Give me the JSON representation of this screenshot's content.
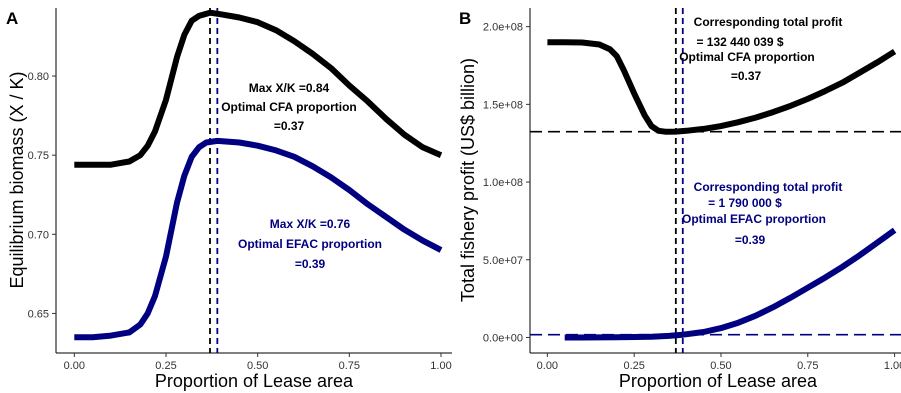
{
  "chart_data": [
    {
      "panel": "A",
      "type": "line",
      "xlabel": "Proportion of Lease area",
      "ylabel": "Equilibrium biomass (X / K)",
      "xlim": [
        -0.05,
        1.03
      ],
      "ylim": [
        0.625,
        0.843
      ],
      "x_ticks": [
        0.0,
        0.25,
        0.5,
        0.75,
        1.0
      ],
      "x_tick_labels": [
        "0.00",
        "0.25",
        "0.50",
        "0.75",
        "1.00"
      ],
      "y_ticks": [
        0.65,
        0.7,
        0.75,
        0.8
      ],
      "y_tick_labels": [
        "0.65",
        "0.70",
        "0.75",
        "0.80"
      ],
      "grid": false,
      "series": [
        {
          "color": "#000000",
          "x": [
            0.0,
            0.05,
            0.1,
            0.15,
            0.18,
            0.2,
            0.22,
            0.25,
            0.28,
            0.3,
            0.32,
            0.34,
            0.37,
            0.4,
            0.45,
            0.5,
            0.55,
            0.6,
            0.65,
            0.7,
            0.75,
            0.8,
            0.85,
            0.9,
            0.95,
            1.0
          ],
          "y": [
            0.744,
            0.744,
            0.744,
            0.746,
            0.75,
            0.756,
            0.765,
            0.785,
            0.812,
            0.826,
            0.835,
            0.838,
            0.84,
            0.839,
            0.837,
            0.834,
            0.829,
            0.822,
            0.814,
            0.805,
            0.794,
            0.784,
            0.773,
            0.763,
            0.755,
            0.75
          ]
        },
        {
          "color": "#000080",
          "x": [
            0.0,
            0.05,
            0.1,
            0.15,
            0.18,
            0.2,
            0.22,
            0.25,
            0.28,
            0.3,
            0.32,
            0.34,
            0.36,
            0.39,
            0.45,
            0.5,
            0.55,
            0.6,
            0.65,
            0.7,
            0.75,
            0.8,
            0.85,
            0.9,
            0.95,
            1.0
          ],
          "y": [
            0.635,
            0.635,
            0.636,
            0.638,
            0.643,
            0.65,
            0.661,
            0.686,
            0.72,
            0.737,
            0.749,
            0.755,
            0.758,
            0.759,
            0.758,
            0.756,
            0.753,
            0.749,
            0.743,
            0.736,
            0.728,
            0.719,
            0.711,
            0.703,
            0.696,
            0.69
          ]
        }
      ],
      "vlines": [
        {
          "x": 0.37,
          "color": "#000000"
        },
        {
          "x": 0.39,
          "color": "#000080"
        }
      ],
      "annotations": [
        {
          "lines": [
            "Max X/K =0.84",
            "Optimal CFA proportion",
            "=0.37"
          ],
          "color": "#000000"
        },
        {
          "lines": [
            "Max X/K =0.76",
            "Optimal EFAC proportion",
            "=0.39"
          ],
          "color": "#000080"
        }
      ]
    },
    {
      "panel": "B",
      "type": "line",
      "xlabel": "Proportion of Lease area",
      "ylabel": "Total fishery profit (US$ billion)",
      "xlim": [
        -0.05,
        1.03
      ],
      "ylim": [
        -10000000,
        212000000
      ],
      "x_ticks": [
        0.0,
        0.25,
        0.5,
        0.75,
        1.0
      ],
      "x_tick_labels": [
        "0.00",
        "0.25",
        "0.50",
        "0.75",
        "1.00"
      ],
      "y_ticks": [
        0,
        50000000,
        100000000,
        150000000,
        200000000
      ],
      "y_tick_labels": [
        "0.0e+00",
        "5.0e+07",
        "1.0e+08",
        "1.5e+08",
        "2.0e+08"
      ],
      "grid": false,
      "series": [
        {
          "color": "#000000",
          "x": [
            0.0,
            0.05,
            0.1,
            0.15,
            0.18,
            0.2,
            0.22,
            0.25,
            0.28,
            0.3,
            0.32,
            0.34,
            0.37,
            0.4,
            0.45,
            0.5,
            0.55,
            0.6,
            0.65,
            0.7,
            0.75,
            0.8,
            0.85,
            0.9,
            0.95,
            1.0
          ],
          "y": [
            190000000,
            190000000,
            189800000,
            188500000,
            185500000,
            181000000,
            172000000,
            157000000,
            143000000,
            136000000,
            133000000,
            132400000,
            132440000,
            133000000,
            134200000,
            136000000,
            138500000,
            141500000,
            145000000,
            149000000,
            153500000,
            158500000,
            164000000,
            170500000,
            177000000,
            184000000
          ]
        },
        {
          "color": "#000080",
          "x": [
            0.05,
            0.1,
            0.2,
            0.3,
            0.35,
            0.39,
            0.45,
            0.5,
            0.55,
            0.6,
            0.65,
            0.7,
            0.75,
            0.8,
            0.85,
            0.9,
            0.95,
            1.0
          ],
          "y": [
            0,
            0,
            100000,
            500000,
            1000000,
            1790000,
            3500000,
            6000000,
            9500000,
            14000000,
            19500000,
            25500000,
            32000000,
            38500000,
            45500000,
            53000000,
            61000000,
            69000000
          ]
        }
      ],
      "hlines": [
        {
          "y": 132440000,
          "color": "#000000"
        },
        {
          "y": 1790000,
          "color": "#000080"
        }
      ],
      "vlines": [
        {
          "x": 0.37,
          "color": "#000000"
        },
        {
          "x": 0.39,
          "color": "#000080"
        }
      ],
      "annotations": [
        {
          "lines": [
            "Corresponding total profit",
            "= 132 440 039 $",
            "Optimal CFA proportion",
            "=0.37"
          ],
          "color": "#000000"
        },
        {
          "lines": [
            "Corresponding total profit",
            "= 1 790 000 $",
            "Optimal EFAC proportion",
            "=0.39"
          ],
          "color": "#000080"
        }
      ]
    }
  ]
}
